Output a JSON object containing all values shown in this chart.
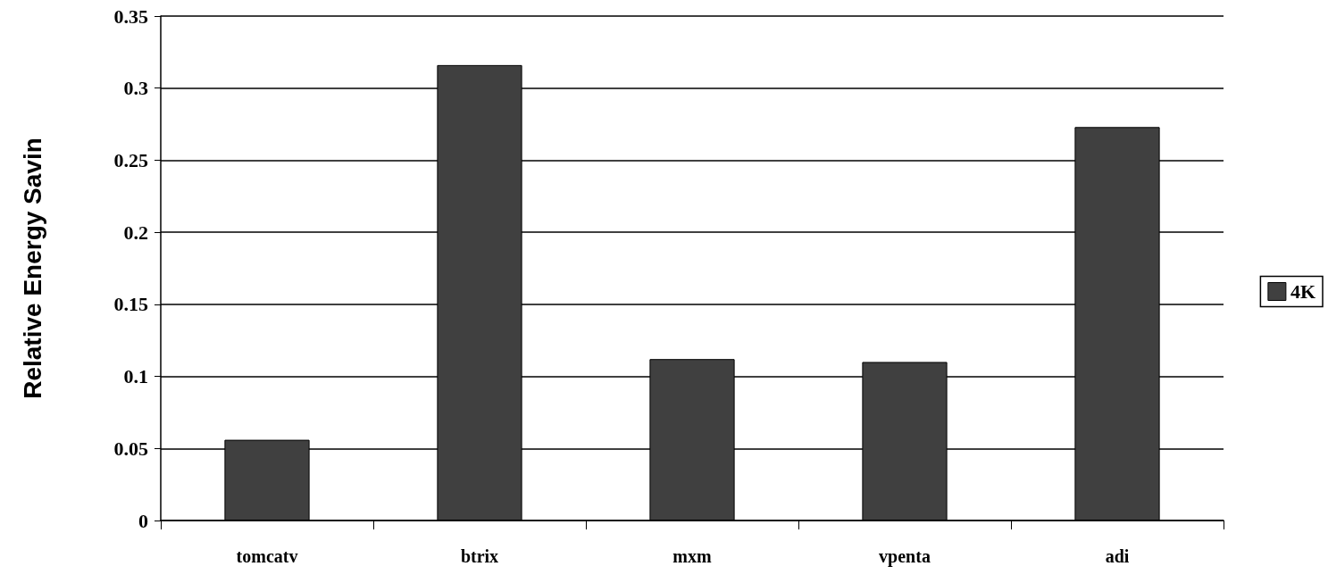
{
  "chart_data": {
    "type": "bar",
    "ylabel": "Relative Energy Savin",
    "categories": [
      "tomcatv",
      "btrix",
      "mxm",
      "vpenta",
      "adi"
    ],
    "series": [
      {
        "name": "4K",
        "color": "#404040",
        "values": [
          0.056,
          0.316,
          0.112,
          0.11,
          0.273
        ]
      }
    ],
    "ylim": [
      0,
      0.35
    ],
    "yticks": [
      0,
      0.05,
      0.1,
      0.15,
      0.2,
      0.25,
      0.3,
      0.35
    ],
    "grid": "y",
    "legend": "right"
  }
}
